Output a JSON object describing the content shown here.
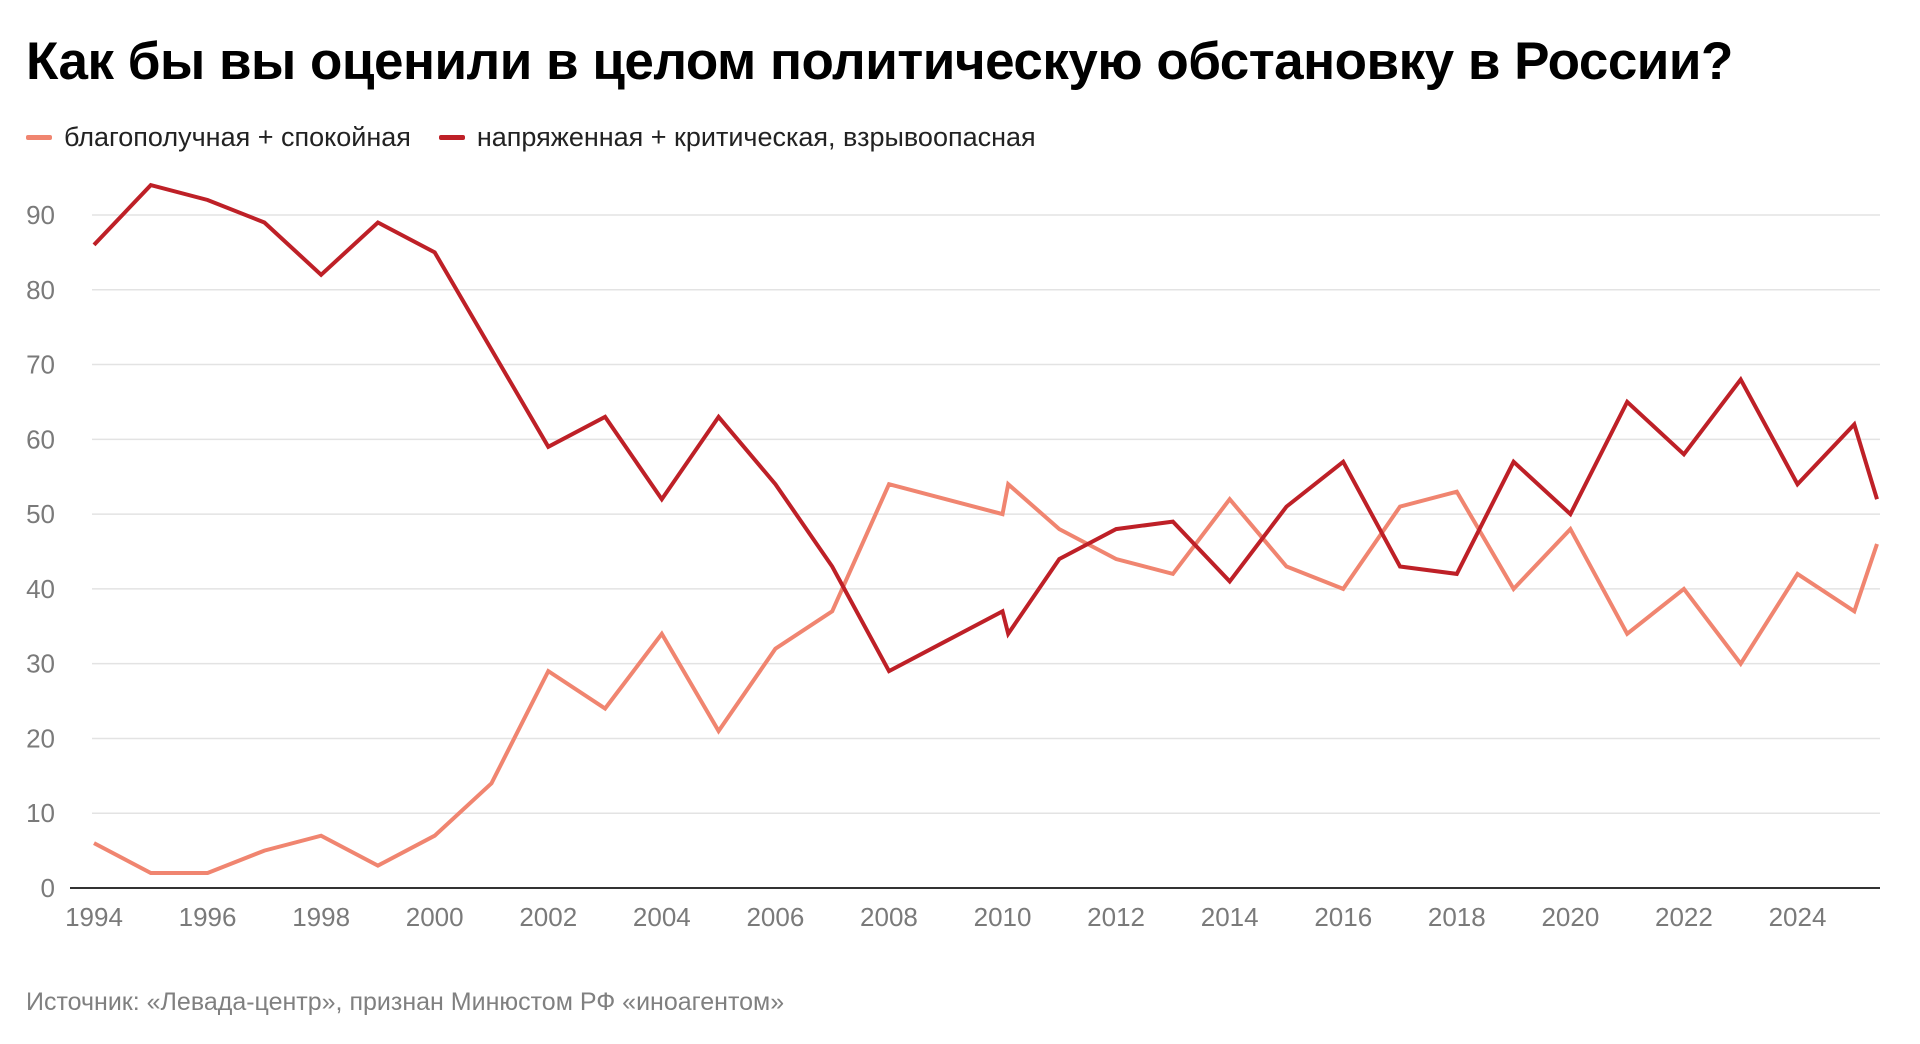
{
  "title": "Как бы вы оценили в целом политическую обстановку в России?",
  "source": "Источник: «Левада-центр», признан Минюстом РФ «иноагентом»",
  "colors": {
    "calm": "#F08570",
    "tense": "#BE2027",
    "grid": "#e3e3e3",
    "axis": "#333333",
    "tick_text": "#7a7a7a"
  },
  "chart_data": {
    "type": "line",
    "title": "Как бы вы оценили в целом политическую обстановку в России?",
    "xlabel": "",
    "ylabel": "",
    "ylim": [
      0,
      90
    ],
    "xlim": [
      1994,
      2025.4
    ],
    "grid": true,
    "legend_position": "top-left",
    "y_ticks": [
      0,
      10,
      20,
      30,
      40,
      50,
      60,
      70,
      80,
      90
    ],
    "x_ticks": [
      1994,
      1996,
      1998,
      2000,
      2002,
      2004,
      2006,
      2008,
      2010,
      2012,
      2014,
      2016,
      2018,
      2020,
      2022,
      2024
    ],
    "x": [
      1994,
      1995,
      1996,
      1997,
      1998,
      1999,
      2000,
      2001,
      2002,
      2003,
      2004,
      2005,
      2006,
      2007,
      2008,
      2009,
      2010,
      2010.1,
      2011,
      2012,
      2013,
      2014,
      2015,
      2016,
      2017,
      2018,
      2019,
      2020,
      2021,
      2022,
      2023,
      2024,
      2025,
      2025.4
    ],
    "series": [
      {
        "name": "благополучная + спокойная",
        "color_key": "calm",
        "values": [
          6,
          2,
          2,
          5,
          7,
          3,
          7,
          14,
          29,
          24,
          34,
          21,
          32,
          37,
          54,
          52,
          50,
          54,
          48,
          44,
          42,
          52,
          43,
          40,
          51,
          53,
          40,
          48,
          34,
          40,
          30,
          42,
          37,
          46
        ]
      },
      {
        "name": "напряженная + критическая, взрывоопасная",
        "color_key": "tense",
        "values": [
          86,
          94,
          92,
          89,
          82,
          89,
          85,
          72,
          59,
          63,
          52,
          63,
          54,
          43,
          29,
          33,
          37,
          34,
          44,
          48,
          49,
          41,
          51,
          57,
          43,
          42,
          57,
          50,
          65,
          58,
          68,
          54,
          62,
          52
        ]
      }
    ]
  }
}
